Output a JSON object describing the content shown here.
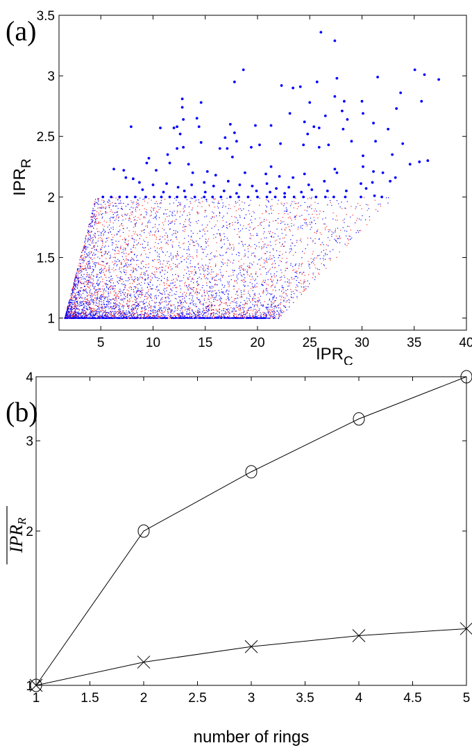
{
  "chart_data": [
    {
      "type": "scatter",
      "panel_label": "(a)",
      "xlabel": "IPR",
      "xlabel_sub": "C",
      "ylabel": "IPR",
      "ylabel_sub": "R",
      "xlim": [
        1,
        40
      ],
      "ylim": [
        0.9,
        3.5
      ],
      "xticks": [
        "5",
        "10",
        "15",
        "20",
        "25",
        "30",
        "35",
        "40"
      ],
      "xtick_values": [
        5,
        10,
        15,
        20,
        25,
        30,
        35,
        40
      ],
      "yticks": [
        "1",
        "1.5",
        "2",
        "2.5",
        "3",
        "3.5"
      ],
      "ytick_values": [
        1,
        1.5,
        2,
        2.5,
        3,
        3.5
      ],
      "grid": false,
      "colors": {
        "red": "#ff2020",
        "blue": "#0000ff"
      },
      "dense_cloud": {
        "description_note": "approx. distribution of small red/blue points, IPR_R in [1,2]",
        "red_count": 2200,
        "blue_count": 3200,
        "y_range": [
          1,
          2
        ],
        "x_min_at_y1": 1.5,
        "x_min_at_y2": 4.5,
        "x_max_at_y1": 22,
        "x_max_at_y2": 33
      },
      "series": [
        {
          "name": "large blue points",
          "color": "#0000ff",
          "points": [
            [
              26.07,
              3.36
            ],
            [
              27.4,
              3.29
            ],
            [
              18.65,
              3.05
            ],
            [
              35.06,
              3.05
            ],
            [
              35.98,
              3.01
            ],
            [
              31.5,
              2.99
            ],
            [
              37.35,
              2.97
            ],
            [
              17.8,
              2.95
            ],
            [
              25.7,
              2.95
            ],
            [
              27.6,
              2.98
            ],
            [
              22.3,
              2.92
            ],
            [
              24.1,
              2.91
            ],
            [
              23.4,
              2.9
            ],
            [
              12.8,
              2.81
            ],
            [
              27.4,
              2.83
            ],
            [
              33.7,
              2.86
            ],
            [
              35.7,
              2.79
            ],
            [
              14.6,
              2.78
            ],
            [
              25.0,
              2.78
            ],
            [
              30.0,
              2.79
            ],
            [
              28.3,
              2.79
            ],
            [
              12.8,
              2.74
            ],
            [
              33.3,
              2.73
            ],
            [
              28.1,
              2.71
            ],
            [
              30.1,
              2.69
            ],
            [
              23.1,
              2.69
            ],
            [
              26.5,
              2.67
            ],
            [
              14.2,
              2.65
            ],
            [
              12.9,
              2.64
            ],
            [
              24.5,
              2.62
            ],
            [
              28.6,
              2.64
            ],
            [
              31.1,
              2.61
            ],
            [
              7.9,
              2.58
            ],
            [
              10.7,
              2.57
            ],
            [
              12.0,
              2.57
            ],
            [
              12.3,
              2.58
            ],
            [
              14.4,
              2.58
            ],
            [
              17.4,
              2.6
            ],
            [
              19.8,
              2.59
            ],
            [
              21.3,
              2.59
            ],
            [
              25.4,
              2.58
            ],
            [
              25.9,
              2.57
            ],
            [
              32.5,
              2.56
            ],
            [
              28.2,
              2.56
            ],
            [
              12.6,
              2.52
            ],
            [
              17.8,
              2.53
            ],
            [
              24.8,
              2.52
            ],
            [
              16.9,
              2.49
            ],
            [
              14.6,
              2.45
            ],
            [
              18.0,
              2.46
            ],
            [
              29.0,
              2.46
            ],
            [
              31.3,
              2.46
            ],
            [
              33.9,
              2.44
            ],
            [
              20.2,
              2.43
            ],
            [
              22.2,
              2.44
            ],
            [
              24.4,
              2.43
            ],
            [
              25.9,
              2.41
            ],
            [
              26.8,
              2.43
            ],
            [
              12.3,
              2.4
            ],
            [
              12.9,
              2.41
            ],
            [
              16.4,
              2.4
            ],
            [
              17.1,
              2.4
            ],
            [
              19.4,
              2.41
            ],
            [
              32.9,
              2.35
            ],
            [
              30.1,
              2.34
            ],
            [
              11.4,
              2.35
            ],
            [
              9.6,
              2.32
            ],
            [
              17.6,
              2.33
            ],
            [
              35.5,
              2.29
            ],
            [
              36.3,
              2.3
            ],
            [
              34.6,
              2.27
            ],
            [
              9.4,
              2.28
            ],
            [
              11.6,
              2.28
            ],
            [
              13.4,
              2.27
            ],
            [
              21.3,
              2.25
            ],
            [
              30.1,
              2.25
            ],
            [
              6.25,
              2.23
            ],
            [
              7.2,
              2.22
            ],
            [
              10.3,
              2.22
            ],
            [
              27.4,
              2.23
            ],
            [
              31.1,
              2.21
            ],
            [
              32.0,
              2.2
            ],
            [
              27.6,
              2.2
            ],
            [
              7.4,
              2.16
            ],
            [
              8.1,
              2.15
            ],
            [
              13.8,
              2.2
            ],
            [
              15.2,
              2.21
            ],
            [
              16.0,
              2.18
            ],
            [
              18.8,
              2.2
            ],
            [
              20.8,
              2.19
            ],
            [
              22.1,
              2.17
            ],
            [
              23.4,
              2.16
            ],
            [
              24.5,
              2.19
            ],
            [
              26.4,
              2.13
            ],
            [
              8.7,
              2.12
            ],
            [
              10.0,
              2.1
            ],
            [
              11.3,
              2.11
            ],
            [
              12.4,
              2.08
            ],
            [
              13.7,
              2.1
            ],
            [
              14.9,
              2.12
            ],
            [
              15.8,
              2.09
            ],
            [
              17.2,
              2.13
            ],
            [
              18.3,
              2.1
            ],
            [
              19.5,
              2.09
            ],
            [
              20.9,
              2.11
            ],
            [
              21.8,
              2.07
            ],
            [
              23.0,
              2.08
            ],
            [
              24.9,
              2.1
            ],
            [
              25.2,
              2.06
            ],
            [
              29.9,
              2.11
            ],
            [
              31.0,
              2.12
            ],
            [
              33.2,
              2.16
            ],
            [
              32.7,
              2.13
            ],
            [
              9.0,
              2.06
            ],
            [
              11.0,
              2.04
            ],
            [
              13.0,
              2.05
            ],
            [
              15.0,
              2.04
            ],
            [
              16.8,
              2.05
            ],
            [
              18.0,
              2.03
            ],
            [
              19.9,
              2.05
            ],
            [
              21.2,
              2.04
            ],
            [
              22.6,
              2.03
            ],
            [
              24.2,
              2.04
            ],
            [
              26.7,
              2.05
            ],
            [
              28.5,
              2.05
            ],
            [
              30.4,
              2.07
            ],
            [
              5.2,
              2.0
            ],
            [
              6.0,
              2.0
            ],
            [
              6.8,
              2.0
            ],
            [
              7.5,
              2.0
            ],
            [
              8.3,
              2.0
            ],
            [
              9.3,
              2.0
            ],
            [
              10.1,
              2.0
            ],
            [
              10.8,
              2.0
            ],
            [
              11.6,
              2.0
            ],
            [
              12.3,
              2.0
            ],
            [
              13.1,
              2.0
            ],
            [
              14.0,
              2.0
            ],
            [
              14.9,
              2.0
            ],
            [
              15.7,
              2.0
            ],
            [
              16.5,
              2.0
            ],
            [
              17.4,
              2.0
            ],
            [
              18.2,
              2.0
            ],
            [
              19.1,
              2.0
            ],
            [
              20.0,
              2.0
            ],
            [
              20.9,
              2.0
            ],
            [
              21.7,
              2.0
            ],
            [
              22.6,
              2.0
            ],
            [
              23.5,
              2.0
            ],
            [
              24.4,
              2.0
            ],
            [
              25.6,
              2.0
            ],
            [
              26.5,
              2.0
            ],
            [
              27.3,
              2.0
            ],
            [
              28.4,
              2.0
            ],
            [
              29.9,
              2.0
            ],
            [
              31.2,
              2.01
            ],
            [
              31.9,
              2.0
            ]
          ]
        }
      ]
    },
    {
      "type": "line",
      "panel_label": "(b)",
      "xlabel": "number of rings",
      "ylabel": "IPR",
      "ylabel_sub": "R",
      "ylabel_overline": true,
      "yscale": "log",
      "xlim": [
        1,
        5
      ],
      "ylim": [
        1,
        4
      ],
      "xticks": [
        "1",
        "1.5",
        "2",
        "2.5",
        "3",
        "3.5",
        "4",
        "4.5",
        "5"
      ],
      "xtick_values": [
        1,
        1.5,
        2,
        2.5,
        3,
        3.5,
        4,
        4.5,
        5
      ],
      "yticks": [
        "1",
        "2",
        "3",
        "4"
      ],
      "ytick_values": [
        1,
        2,
        3,
        4
      ],
      "grid": false,
      "x": [
        1,
        2,
        3,
        4,
        5
      ],
      "series": [
        {
          "name": "circles",
          "marker": "o",
          "color": "#000000",
          "values": [
            1.0,
            2.0,
            2.61,
            3.31,
            4.0
          ]
        },
        {
          "name": "crosses",
          "marker": "x",
          "color": "#000000",
          "values": [
            1.0,
            1.11,
            1.19,
            1.25,
            1.29
          ]
        }
      ]
    }
  ]
}
